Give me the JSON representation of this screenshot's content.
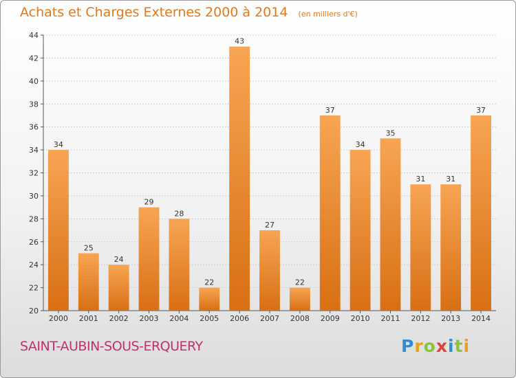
{
  "chart_data": {
    "type": "bar",
    "title": "Achats et Charges Externes 2000 à 2014",
    "subtitle": "(en milliers d'€)",
    "categories": [
      "2000",
      "2001",
      "2002",
      "2003",
      "2004",
      "2005",
      "2006",
      "2007",
      "2008",
      "2009",
      "2010",
      "2011",
      "2012",
      "2013",
      "2014"
    ],
    "values": [
      34,
      25,
      24,
      29,
      28,
      22,
      43,
      27,
      22,
      37,
      34,
      35,
      31,
      31,
      37
    ],
    "ylim": [
      20,
      44
    ],
    "yticks": [
      20,
      22,
      24,
      26,
      28,
      30,
      32,
      34,
      36,
      38,
      40,
      42,
      44
    ],
    "grid": true,
    "bar_color": "#f0913a",
    "xlabel": "",
    "ylabel": ""
  },
  "footer": {
    "place": "SAINT-AUBIN-SOUS-ERQUERY",
    "place_color": "#c0306e"
  },
  "logo": {
    "letters": [
      "P",
      "r",
      "o",
      "x",
      "i",
      "t",
      "i"
    ],
    "colors": [
      "#2a8fd6",
      "#e8a21a",
      "#8ac43f",
      "#e0403a",
      "#2a8fd6",
      "#8ac43f",
      "#e8a21a"
    ]
  }
}
